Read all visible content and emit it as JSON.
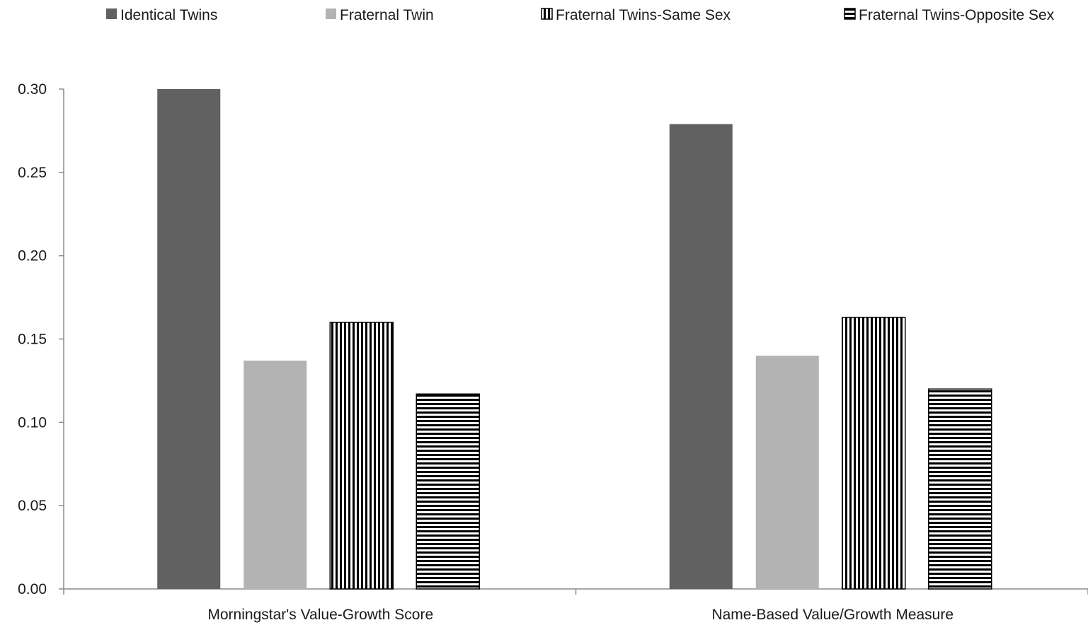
{
  "chart_data": {
    "type": "bar",
    "categories": [
      "Morningstar's Value-Growth Score",
      "Name-Based Value/Growth Measure"
    ],
    "series": [
      {
        "name": "Identical Twins",
        "values": [
          0.3,
          0.279
        ],
        "color": "#616161",
        "pattern": "solid"
      },
      {
        "name": "Fraternal Twin",
        "values": [
          0.137,
          0.14
        ],
        "color": "#b3b3b3",
        "pattern": "solid"
      },
      {
        "name": "Fraternal Twins-Same Sex",
        "values": [
          0.16,
          0.163
        ],
        "color": "#000000",
        "pattern": "vertical-stripes"
      },
      {
        "name": "Fraternal Twins-Opposite Sex",
        "values": [
          0.117,
          0.12
        ],
        "color": "#000000",
        "pattern": "horizontal-stripes"
      }
    ],
    "yticks": [
      "0.00",
      "0.05",
      "0.10",
      "0.15",
      "0.20",
      "0.25",
      "0.30"
    ],
    "ylim": [
      0,
      0.3
    ],
    "grid": false,
    "legend_position": "top"
  }
}
